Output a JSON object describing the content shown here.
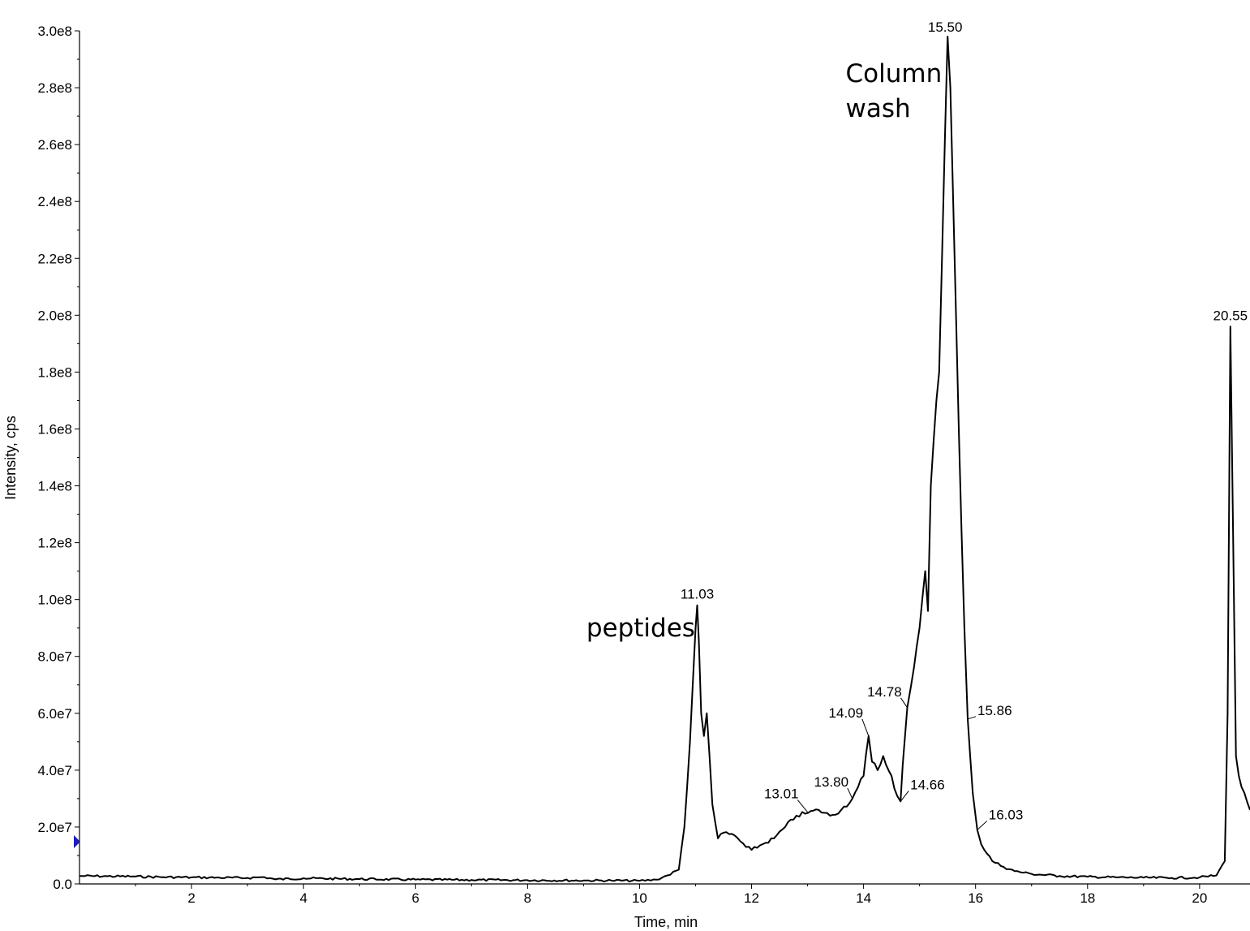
{
  "chart_data": {
    "type": "line",
    "xlabel": "Time, min",
    "ylabel": "Intensity, cps",
    "xlim": [
      0,
      20.9
    ],
    "ylim": [
      0,
      300000000
    ],
    "x_ticks": [
      2,
      4,
      6,
      8,
      10,
      12,
      14,
      16,
      18,
      20
    ],
    "y_ticks": [
      {
        "value": 0,
        "label": "0.0"
      },
      {
        "value": 20000000,
        "label": "2.0e7"
      },
      {
        "value": 40000000,
        "label": "4.0e7"
      },
      {
        "value": 60000000,
        "label": "6.0e7"
      },
      {
        "value": 80000000,
        "label": "8.0e7"
      },
      {
        "value": 100000000,
        "label": "1.0e8"
      },
      {
        "value": 120000000,
        "label": "1.2e8"
      },
      {
        "value": 140000000,
        "label": "1.4e8"
      },
      {
        "value": 160000000,
        "label": "1.6e8"
      },
      {
        "value": 180000000,
        "label": "1.8e8"
      },
      {
        "value": 200000000,
        "label": "2.0e8"
      },
      {
        "value": 220000000,
        "label": "2.2e8"
      },
      {
        "value": 240000000,
        "label": "2.4e8"
      },
      {
        "value": 260000000,
        "label": "2.6e8"
      },
      {
        "value": 280000000,
        "label": "2.8e8"
      },
      {
        "value": 300000000,
        "label": "3.0e8"
      }
    ],
    "series": [
      {
        "x": [
          0.0,
          0.5,
          1.0,
          1.5,
          2.0,
          2.5,
          3.0,
          3.3,
          3.5,
          4.0,
          5.0,
          6.0,
          7.0,
          8.0,
          9.0,
          9.5,
          10.0,
          10.3,
          10.5,
          10.7,
          10.8,
          10.9,
          10.95,
          11.0,
          11.03,
          11.06,
          11.1,
          11.15,
          11.2,
          11.25,
          11.3,
          11.4,
          11.5,
          11.7,
          11.9,
          12.0,
          12.2,
          12.4,
          12.6,
          12.8,
          13.01,
          13.2,
          13.4,
          13.6,
          13.8,
          13.9,
          14.0,
          14.09,
          14.15,
          14.25,
          14.35,
          14.4,
          14.5,
          14.6,
          14.66,
          14.7,
          14.78,
          14.85,
          14.9,
          15.0,
          15.1,
          15.15,
          15.2,
          15.3,
          15.35,
          15.4,
          15.45,
          15.5,
          15.55,
          15.6,
          15.7,
          15.8,
          15.86,
          15.95,
          16.03,
          16.1,
          16.3,
          16.5,
          16.7,
          17.0,
          17.5,
          18.0,
          18.5,
          19.0,
          19.5,
          20.0,
          20.3,
          20.45,
          20.5,
          20.55,
          20.6,
          20.65,
          20.7,
          20.8,
          20.9
        ],
        "y": [
          2800000,
          2700000,
          2600000,
          2400000,
          2300000,
          2200000,
          2100000,
          2400000,
          1600000,
          2000000,
          1700000,
          1500000,
          1400000,
          1300000,
          1200000,
          1200000,
          1100000,
          1500000,
          3000000,
          5000000,
          20000000,
          50000000,
          70000000,
          90000000,
          98000000,
          85000000,
          60000000,
          52000000,
          60000000,
          45000000,
          28000000,
          16000000,
          18000000,
          17000000,
          13000000,
          12000000,
          14000000,
          16000000,
          20000000,
          24000000,
          25000000,
          26000000,
          24000000,
          26000000,
          30000000,
          34000000,
          38000000,
          52000000,
          43000000,
          40000000,
          45000000,
          42000000,
          38000000,
          31000000,
          29000000,
          42000000,
          62000000,
          70000000,
          76000000,
          90000000,
          110000000,
          96000000,
          140000000,
          170000000,
          180000000,
          220000000,
          260000000,
          298000000,
          280000000,
          240000000,
          160000000,
          90000000,
          58000000,
          32000000,
          19000000,
          14000000,
          8000000,
          6000000,
          4500000,
          3500000,
          2800000,
          2500000,
          2300000,
          2200000,
          2100000,
          2300000,
          3000000,
          8000000,
          60000000,
          196000000,
          120000000,
          45000000,
          38000000,
          32000000,
          26000000
        ]
      }
    ],
    "peak_labels": [
      {
        "label": "11.03",
        "x": 11.03,
        "y": 98000000
      },
      {
        "label": "13.01",
        "x": 13.01,
        "y": 25000000
      },
      {
        "label": "13.80",
        "x": 13.8,
        "y": 30000000
      },
      {
        "label": "14.09",
        "x": 14.09,
        "y": 52000000
      },
      {
        "label": "14.66",
        "x": 14.66,
        "y": 29000000
      },
      {
        "label": "14.78",
        "x": 14.78,
        "y": 62000000
      },
      {
        "label": "15.50",
        "x": 15.5,
        "y": 298000000
      },
      {
        "label": "15.86",
        "x": 15.86,
        "y": 58000000
      },
      {
        "label": "16.03",
        "x": 16.03,
        "y": 19000000
      },
      {
        "label": "20.55",
        "x": 20.55,
        "y": 196000000
      }
    ],
    "annotations": [
      {
        "lines": [
          "Column",
          "wash"
        ],
        "x": 13.68,
        "y": 282000000
      },
      {
        "lines": [
          "peptides"
        ],
        "x": 9.05,
        "y": 87000000
      }
    ],
    "colors": {
      "line": "#000000",
      "marker": "#1a1acc"
    },
    "grid": false,
    "legend": "none"
  }
}
